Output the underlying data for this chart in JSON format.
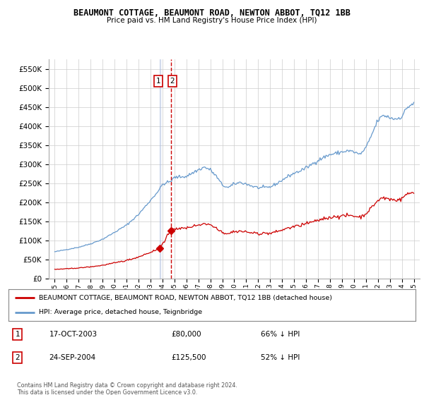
{
  "title": "BEAUMONT COTTAGE, BEAUMONT ROAD, NEWTON ABBOT, TQ12 1BB",
  "subtitle": "Price paid vs. HM Land Registry's House Price Index (HPI)",
  "legend_line1": "BEAUMONT COTTAGE, BEAUMONT ROAD, NEWTON ABBOT, TQ12 1BB (detached house)",
  "legend_line2": "HPI: Average price, detached house, Teignbridge",
  "transaction1_date": "17-OCT-2003",
  "transaction1_price": "£80,000",
  "transaction1_hpi": "66% ↓ HPI",
  "transaction2_date": "24-SEP-2004",
  "transaction2_price": "£125,500",
  "transaction2_hpi": "52% ↓ HPI",
  "footer": "Contains HM Land Registry data © Crown copyright and database right 2024.\nThis data is licensed under the Open Government Licence v3.0.",
  "red_color": "#cc0000",
  "blue_color": "#6699cc",
  "background_color": "#ffffff",
  "grid_color": "#cccccc",
  "ylim": [
    0,
    575000
  ],
  "yticks": [
    0,
    50000,
    100000,
    150000,
    200000,
    250000,
    300000,
    350000,
    400000,
    450000,
    500000,
    550000
  ],
  "sale1_x": 2003.79,
  "sale1_y": 80000,
  "sale2_x": 2004.71,
  "sale2_y": 125500,
  "xlim": [
    1994.5,
    2025.5
  ]
}
